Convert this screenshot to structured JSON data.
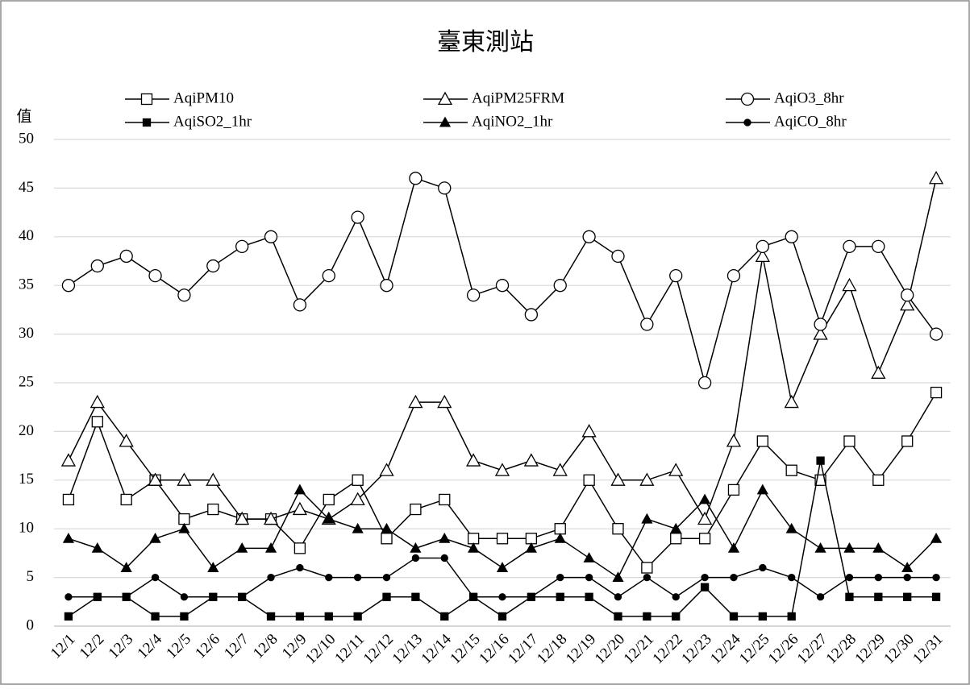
{
  "chart_data": {
    "type": "line",
    "title": "臺東測站",
    "y_label": "值",
    "categories": [
      "12/1",
      "12/2",
      "12/3",
      "12/4",
      "12/5",
      "12/6",
      "12/7",
      "12/8",
      "12/9",
      "12/10",
      "12/11",
      "12/12",
      "12/13",
      "12/14",
      "12/15",
      "12/16",
      "12/17",
      "12/18",
      "12/19",
      "12/20",
      "12/21",
      "12/22",
      "12/23",
      "12/24",
      "12/25",
      "12/26",
      "12/27",
      "12/28",
      "12/29",
      "12/30",
      "12/31"
    ],
    "series": [
      {
        "name": "AqiPM10",
        "color": "#000000",
        "marker": "square",
        "filled": false,
        "values": [
          13,
          21,
          13,
          15,
          11,
          12,
          11,
          11,
          8,
          13,
          15,
          9,
          12,
          13,
          9,
          9,
          9,
          10,
          15,
          10,
          6,
          9,
          9,
          14,
          19,
          16,
          15,
          19,
          15,
          19,
          24
        ]
      },
      {
        "name": "AqiPM25FRM",
        "color": "#000000",
        "marker": "triangle",
        "filled": false,
        "values": [
          17,
          23,
          19,
          15,
          15,
          15,
          11,
          11,
          12,
          11,
          13,
          16,
          23,
          23,
          17,
          16,
          17,
          16,
          20,
          15,
          15,
          16,
          11,
          19,
          38,
          23,
          30,
          35,
          26,
          33,
          46
        ]
      },
      {
        "name": "AqiO3_8hr",
        "color": "#000000",
        "marker": "circle",
        "filled": false,
        "values": [
          35,
          37,
          38,
          36,
          34,
          37,
          39,
          40,
          33,
          36,
          42,
          35,
          46,
          45,
          34,
          35,
          32,
          35,
          40,
          38,
          31,
          36,
          25,
          36,
          39,
          40,
          31,
          39,
          39,
          34,
          30
        ]
      },
      {
        "name": "AqiSO2_1hr",
        "color": "#000000",
        "marker": "square",
        "filled": true,
        "values": [
          1,
          3,
          3,
          1,
          1,
          3,
          3,
          1,
          1,
          1,
          1,
          3,
          3,
          1,
          3,
          1,
          3,
          3,
          3,
          1,
          1,
          1,
          4,
          1,
          1,
          1,
          17,
          3,
          3,
          3,
          3
        ]
      },
      {
        "name": "AqiNO2_1hr",
        "color": "#000000",
        "marker": "triangle",
        "filled": true,
        "values": [
          9,
          8,
          6,
          9,
          10,
          6,
          8,
          8,
          14,
          11,
          10,
          10,
          8,
          9,
          8,
          6,
          8,
          9,
          7,
          5,
          11,
          10,
          13,
          8,
          14,
          10,
          8,
          8,
          8,
          6,
          9
        ]
      },
      {
        "name": "AqiCO_8hr",
        "color": "#000000",
        "marker": "circle",
        "filled": true,
        "values": [
          3,
          3,
          3,
          5,
          3,
          3,
          3,
          5,
          6,
          5,
          5,
          5,
          7,
          7,
          3,
          3,
          3,
          5,
          5,
          3,
          5,
          3,
          5,
          5,
          6,
          5,
          3,
          5,
          5,
          5,
          5
        ]
      }
    ],
    "ylim": [
      0,
      50
    ],
    "yticks": [
      0,
      5,
      10,
      15,
      20,
      25,
      30,
      35,
      40,
      45,
      50
    ],
    "grid": true
  }
}
